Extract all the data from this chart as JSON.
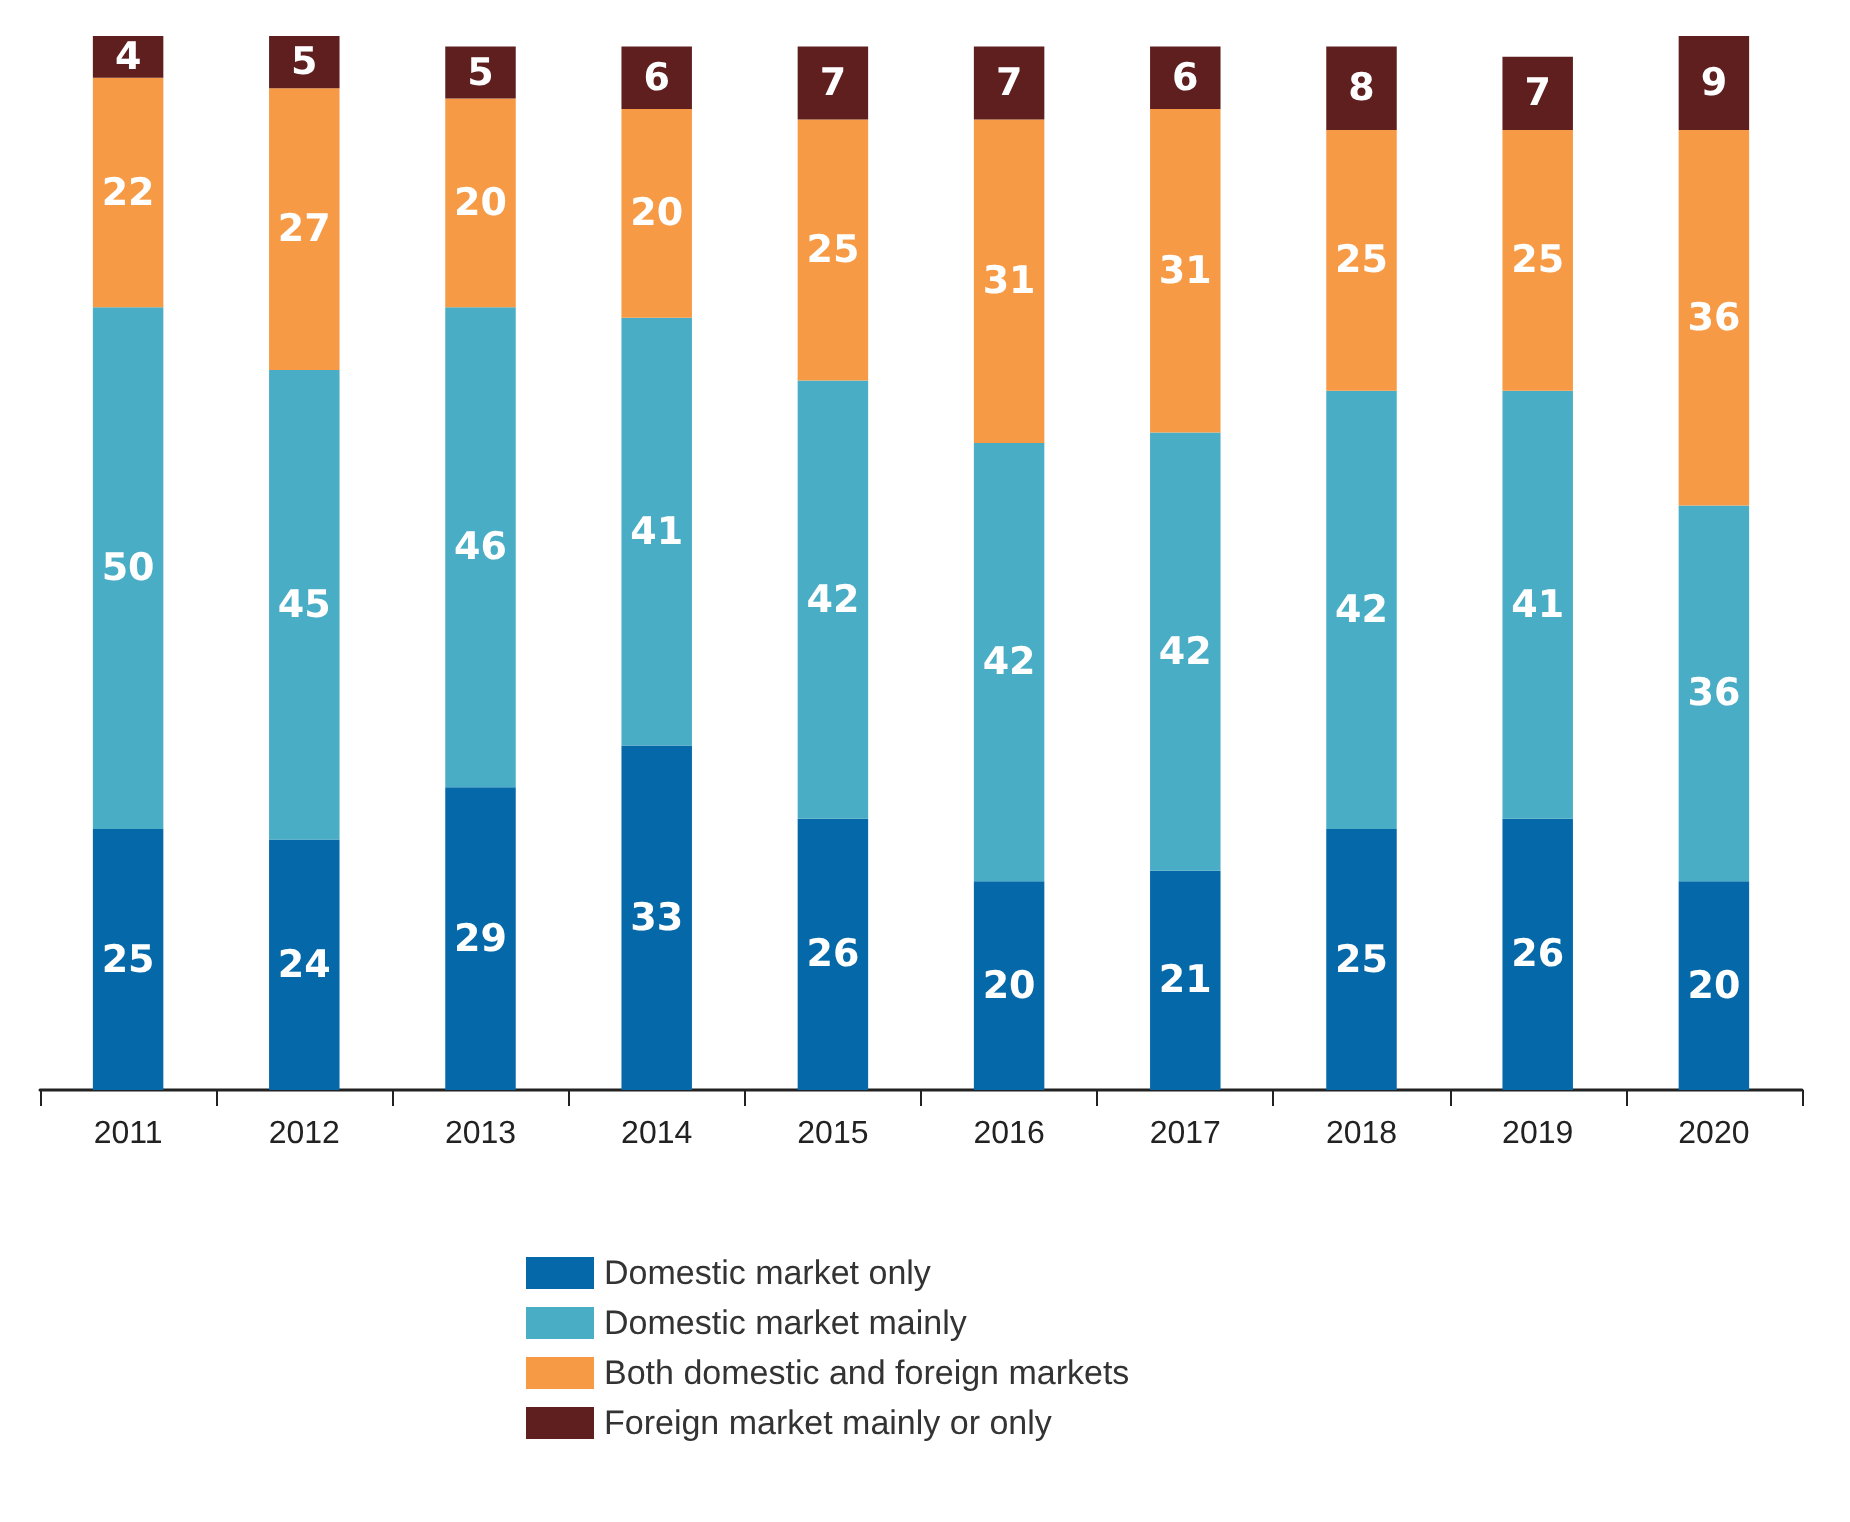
{
  "chart_data": {
    "type": "bar",
    "stacked": true,
    "data_labels": true,
    "legend": "bottom",
    "tick_labels": "x",
    "categories": [
      "2011",
      "2012",
      "2013",
      "2014",
      "2015",
      "2016",
      "2017",
      "2018",
      "2019",
      "2020"
    ],
    "series": [
      {
        "name": "Domestic market only",
        "color": "#0568a8",
        "values": [
          25,
          24,
          29,
          33,
          26,
          20,
          21,
          25,
          26,
          20
        ]
      },
      {
        "name": "Domestic market mainly",
        "color": "#4aadc6",
        "values": [
          50,
          45,
          46,
          41,
          42,
          42,
          42,
          42,
          41,
          36
        ]
      },
      {
        "name": "Both domestic and foreign markets",
        "color": "#f79a45",
        "values": [
          22,
          27,
          20,
          20,
          25,
          31,
          31,
          25,
          25,
          36
        ]
      },
      {
        "name": "Foreign market mainly or only",
        "color": "#5f1f1f",
        "values": [
          4,
          5,
          5,
          6,
          7,
          7,
          6,
          8,
          7,
          9
        ]
      }
    ]
  }
}
